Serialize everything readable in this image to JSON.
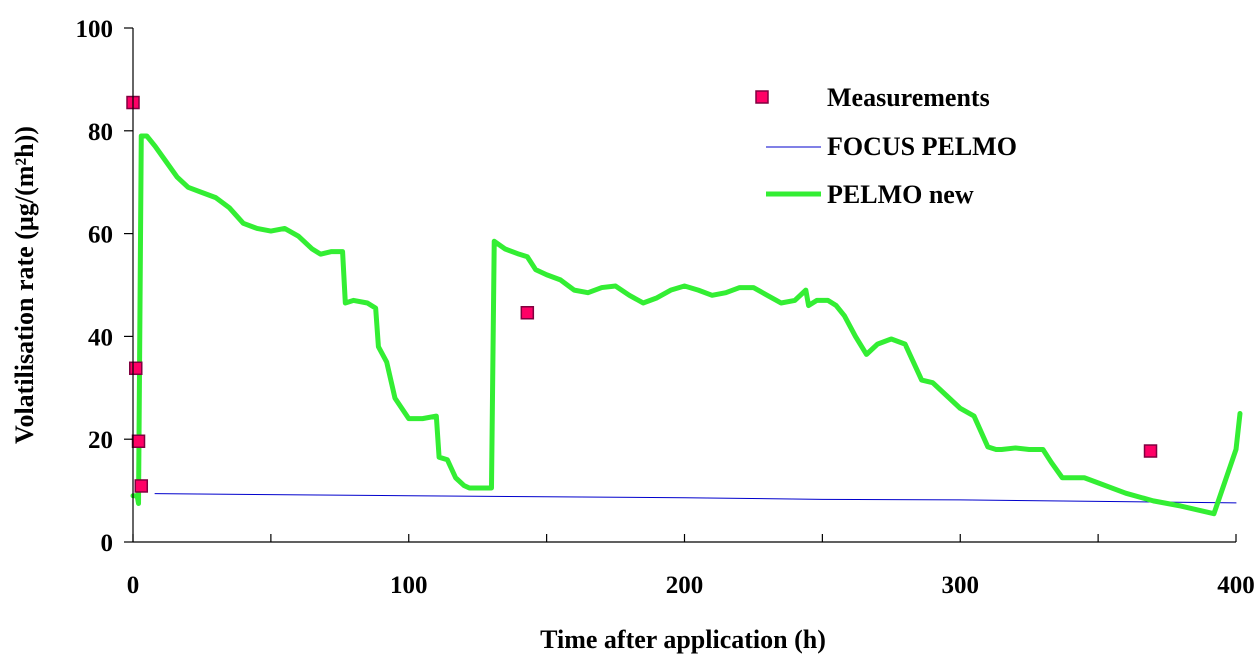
{
  "chart_data": {
    "type": "line",
    "xlabel": "Time after application (h)",
    "ylabel": "Volatilisation rate (µg/(m²h))",
    "xlim": [
      0,
      400
    ],
    "ylim": [
      0,
      100
    ],
    "x_ticks": [
      0,
      100,
      200,
      300,
      400
    ],
    "y_ticks": [
      0,
      20,
      40,
      60,
      80,
      100
    ],
    "grid": false,
    "legend_position": "top-right",
    "series": [
      {
        "name": "Measurements",
        "kind": "scatter",
        "color": "#ff0066",
        "edge_color": "#800040",
        "x": [
          0,
          1,
          2,
          3,
          143,
          369
        ],
        "y": [
          85.5,
          33.8,
          19.6,
          10.9,
          44.6,
          17.7
        ]
      },
      {
        "name": "FOCUS PELMO",
        "kind": "line",
        "color": "#0000cc",
        "x": [
          8,
          100,
          200,
          250,
          300,
          350,
          400
        ],
        "y": [
          9.4,
          9.0,
          8.6,
          8.3,
          8.2,
          7.9,
          7.6
        ]
      },
      {
        "name": "PELMO new",
        "kind": "line",
        "color": "#33ee33",
        "x": [
          0,
          1.5,
          2,
          3,
          5,
          8,
          12,
          16,
          20,
          25,
          30,
          35,
          40,
          45,
          50,
          55,
          60,
          65,
          68,
          72,
          76,
          77,
          80,
          85,
          88,
          89,
          92,
          95,
          100,
          105,
          110,
          111,
          114,
          117,
          120,
          122,
          126,
          130,
          131,
          135,
          140,
          143,
          146,
          150,
          155,
          160,
          165,
          170,
          175,
          180,
          185,
          190,
          195,
          200,
          205,
          210,
          215,
          220,
          225,
          230,
          235,
          240,
          244,
          245,
          248,
          252,
          255,
          258,
          262,
          266,
          270,
          275,
          280,
          283,
          286,
          290,
          295,
          300,
          305,
          310,
          313,
          315,
          320,
          325,
          330,
          333,
          337,
          340,
          345,
          350,
          360,
          370,
          380,
          392,
          400,
          403
        ],
        "y": [
          9,
          9,
          7.5,
          79,
          79,
          77,
          74,
          71,
          69,
          68,
          67,
          65,
          62,
          61,
          60.5,
          61,
          59.5,
          57,
          56,
          56.5,
          56.5,
          46.5,
          47,
          46.5,
          45.5,
          38,
          35,
          28,
          24,
          24,
          24.5,
          16.5,
          16,
          12.5,
          11,
          10.5,
          10.5,
          10.5,
          58.5,
          57,
          56,
          55.5,
          53,
          52,
          51,
          49,
          48.5,
          49.5,
          49.8,
          48,
          46.5,
          47.5,
          49,
          49.8,
          49,
          48,
          48.5,
          49.5,
          49.5,
          48,
          46.5,
          47,
          49,
          46,
          47,
          47,
          46,
          44,
          40,
          36.5,
          38.5,
          39.5,
          38.5,
          35,
          31.5,
          31,
          28.5,
          26,
          24.5,
          18.5,
          18,
          18,
          18.3,
          18,
          18,
          15.5,
          12.5,
          12.5,
          12.5,
          11.5,
          9.5,
          8,
          7,
          5.5,
          18,
          25
        ]
      }
    ]
  }
}
